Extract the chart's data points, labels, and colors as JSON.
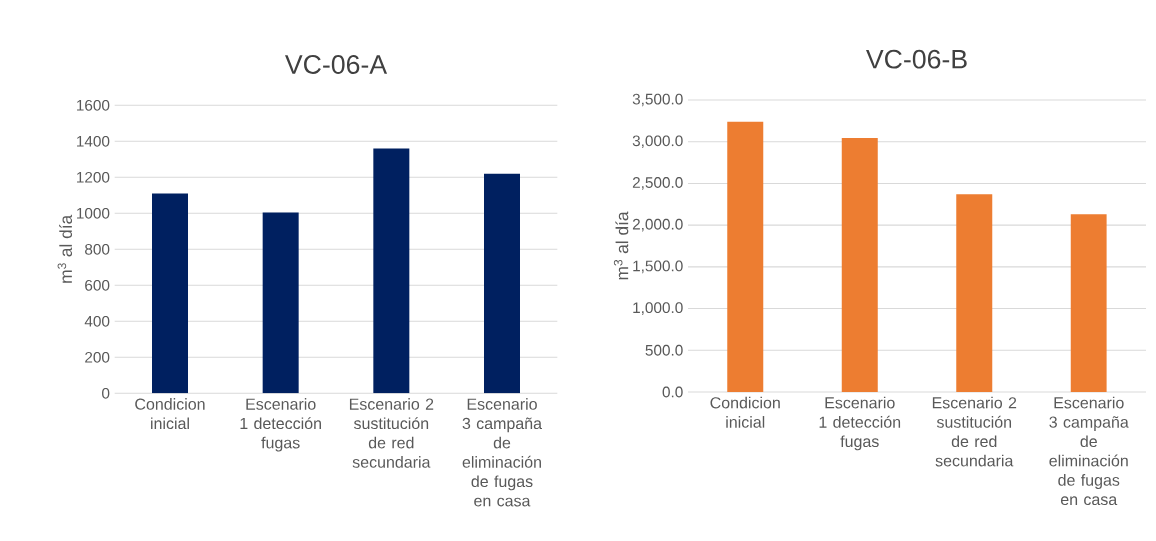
{
  "chart_data": [
    {
      "type": "bar",
      "title": "VC-06-A",
      "ylabel": "m$^{3}$ al día",
      "categories": [
        "Condicion inicial",
        "Escenario 1 detección fugas",
        "Escenario 2 sustitución de red secundaria",
        "Escenario 3 campaña de eliminación de fugas en casa"
      ],
      "values": [
        1110,
        1005,
        1360,
        1220
      ],
      "color": "#002060",
      "ylim": [
        0,
        1600
      ],
      "yticks": [
        0,
        200,
        400,
        600,
        800,
        1000,
        1200,
        1400,
        1600
      ],
      "grid": "y"
    },
    {
      "type": "bar",
      "title": "VC-06-B",
      "ylabel": "m$^{3}$ al día",
      "categories": [
        "Condicion inicial",
        "Escenario 1 detección fugas",
        "Escenario 2 sustitución de red secundaria",
        "Escenario 3 campaña de eliminación de fugas en casa"
      ],
      "values": [
        3240,
        3045,
        2370,
        2130
      ],
      "color": "#ed7d31",
      "ylim": [
        0,
        3500
      ],
      "yticks": [
        {
          "value": 0,
          "label": "0.0"
        },
        {
          "value": 500,
          "label": "500.0"
        },
        {
          "value": 1000,
          "label": "1,000.0"
        },
        {
          "value": 1500,
          "label": "1,500.0"
        },
        {
          "value": 2000,
          "label": "2,000.0"
        },
        {
          "value": 2500,
          "label": "2,500.0"
        },
        {
          "value": 3000,
          "label": "3,000.0"
        },
        {
          "value": 3500,
          "label": "3,500.0"
        }
      ],
      "grid": "y"
    }
  ]
}
